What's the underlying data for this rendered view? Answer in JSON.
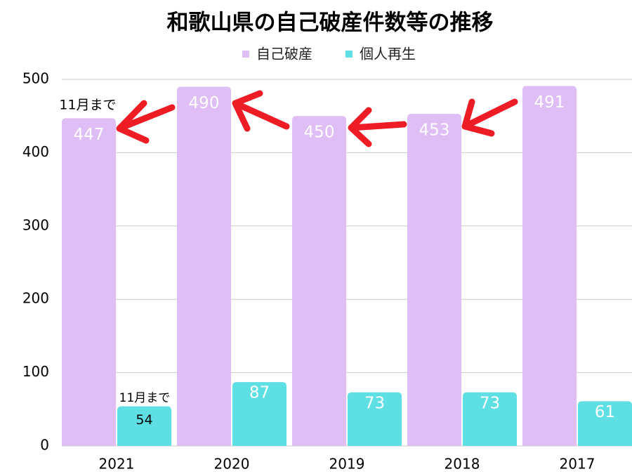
{
  "chart_data": {
    "type": "bar",
    "title": "和歌山県の自己破産件数等の推移",
    "categories": [
      "2021",
      "2020",
      "2019",
      "2018",
      "2017"
    ],
    "series": [
      {
        "name": "自己破産",
        "color": "#dfbdf5",
        "values": [
          447,
          490,
          450,
          453,
          491
        ]
      },
      {
        "name": "個人再生",
        "color": "#5ddfe4",
        "values": [
          54,
          87,
          73,
          73,
          61
        ]
      }
    ],
    "annotations": [
      "11月まで",
      "11月まで"
    ],
    "ylim": [
      0,
      500
    ],
    "yticks": [
      0,
      100,
      200,
      300,
      400,
      500
    ],
    "grid": true,
    "legend": "top"
  }
}
